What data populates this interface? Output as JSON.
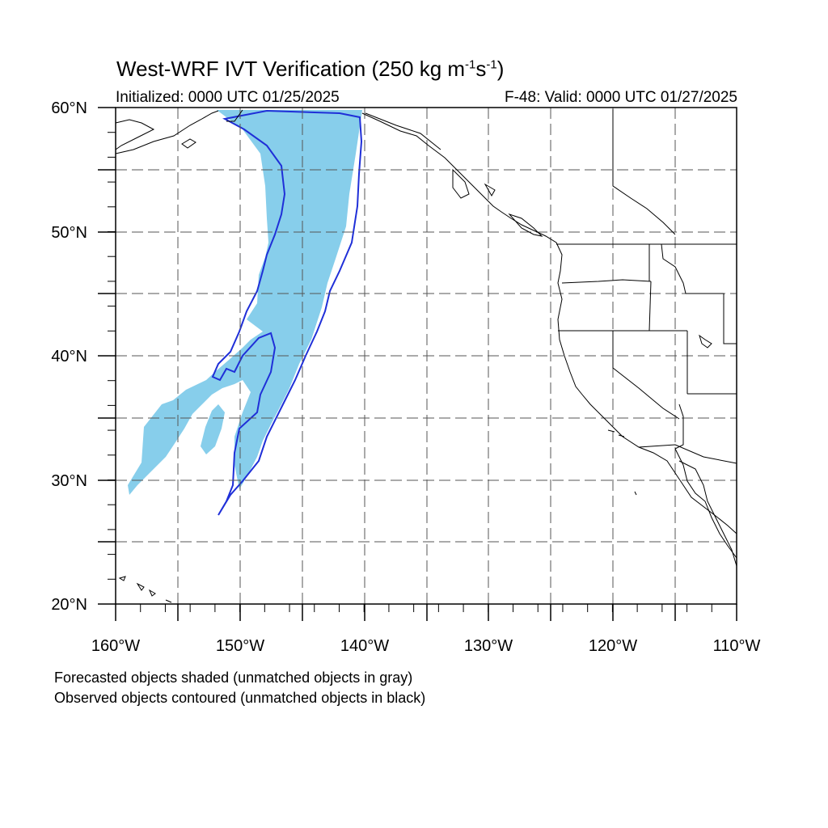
{
  "title": {
    "text": "West-WRF IVT Verification (250 kg m",
    "exp1": "-1",
    "mid": "s",
    "exp2": "-1",
    "end": ")"
  },
  "initialized": "Initialized: 0000 UTC 01/25/2025",
  "valid": "F-48: Valid: 0000 UTC 01/27/2025",
  "notes": [
    "Forecasted objects shaded (unmatched objects in gray)",
    "Observed objects contoured (unmatched objects in black)"
  ],
  "axes": {
    "lat_labels": [
      "60°N",
      "50°N",
      "40°N",
      "30°N",
      "20°N"
    ],
    "lon_labels": [
      "160°W",
      "150°W",
      "140°W",
      "130°W",
      "120°W",
      "110°W"
    ],
    "lat_range": [
      20,
      60
    ],
    "lon_range": [
      -160,
      -110
    ]
  },
  "colors": {
    "forecast_fill": "#87ceeb",
    "observed_contour": "#1f2fd8",
    "coastline": "#000000",
    "grid": "#555555"
  }
}
